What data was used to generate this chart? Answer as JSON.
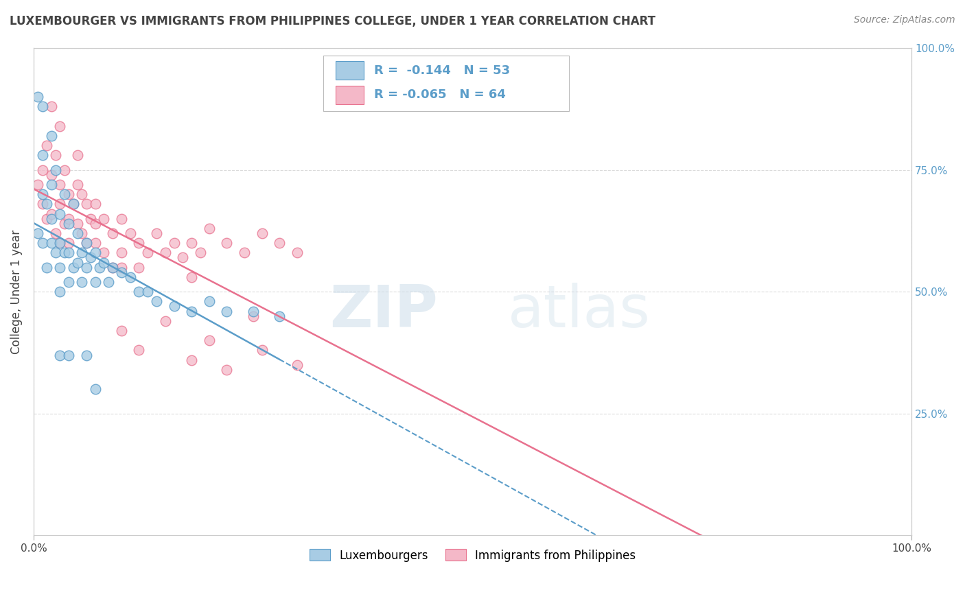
{
  "title": "LUXEMBOURGER VS IMMIGRANTS FROM PHILIPPINES COLLEGE, UNDER 1 YEAR CORRELATION CHART",
  "source_text": "Source: ZipAtlas.com",
  "ylabel": "College, Under 1 year",
  "xlim": [
    0.0,
    1.0
  ],
  "ylim": [
    0.0,
    1.0
  ],
  "blue_color": "#a8cce4",
  "blue_edge_color": "#5b9dc9",
  "pink_color": "#f4b8c8",
  "pink_edge_color": "#e8718e",
  "blue_line_color": "#5b9dc9",
  "pink_line_color": "#e8718e",
  "lux_x": [
    0.005,
    0.01,
    0.01,
    0.01,
    0.015,
    0.015,
    0.02,
    0.02,
    0.02,
    0.025,
    0.025,
    0.03,
    0.03,
    0.03,
    0.03,
    0.035,
    0.035,
    0.04,
    0.04,
    0.04,
    0.045,
    0.045,
    0.05,
    0.05,
    0.055,
    0.055,
    0.06,
    0.06,
    0.065,
    0.07,
    0.07,
    0.075,
    0.08,
    0.085,
    0.09,
    0.1,
    0.11,
    0.12,
    0.13,
    0.14,
    0.16,
    0.18,
    0.2,
    0.22,
    0.25,
    0.28,
    0.005,
    0.01,
    0.02,
    0.03,
    0.04,
    0.06,
    0.07
  ],
  "lux_y": [
    0.62,
    0.78,
    0.7,
    0.6,
    0.68,
    0.55,
    0.72,
    0.65,
    0.6,
    0.75,
    0.58,
    0.66,
    0.6,
    0.55,
    0.5,
    0.7,
    0.58,
    0.64,
    0.58,
    0.52,
    0.68,
    0.55,
    0.62,
    0.56,
    0.58,
    0.52,
    0.6,
    0.55,
    0.57,
    0.58,
    0.52,
    0.55,
    0.56,
    0.52,
    0.55,
    0.54,
    0.53,
    0.5,
    0.5,
    0.48,
    0.47,
    0.46,
    0.48,
    0.46,
    0.46,
    0.45,
    0.9,
    0.88,
    0.82,
    0.37,
    0.37,
    0.37,
    0.3
  ],
  "phil_x": [
    0.005,
    0.01,
    0.01,
    0.015,
    0.015,
    0.02,
    0.02,
    0.025,
    0.025,
    0.03,
    0.03,
    0.03,
    0.035,
    0.035,
    0.04,
    0.04,
    0.04,
    0.045,
    0.05,
    0.05,
    0.055,
    0.055,
    0.06,
    0.06,
    0.065,
    0.07,
    0.07,
    0.08,
    0.08,
    0.09,
    0.09,
    0.1,
    0.1,
    0.11,
    0.12,
    0.13,
    0.14,
    0.15,
    0.16,
    0.17,
    0.18,
    0.19,
    0.2,
    0.22,
    0.24,
    0.26,
    0.28,
    0.3,
    0.02,
    0.03,
    0.05,
    0.07,
    0.1,
    0.15,
    0.2,
    0.1,
    0.12,
    0.18,
    0.22,
    0.26,
    0.3,
    0.12,
    0.18,
    0.25
  ],
  "phil_y": [
    0.72,
    0.75,
    0.68,
    0.8,
    0.65,
    0.74,
    0.66,
    0.78,
    0.62,
    0.72,
    0.68,
    0.6,
    0.75,
    0.64,
    0.7,
    0.65,
    0.6,
    0.68,
    0.72,
    0.64,
    0.7,
    0.62,
    0.68,
    0.6,
    0.65,
    0.68,
    0.6,
    0.65,
    0.58,
    0.62,
    0.55,
    0.65,
    0.58,
    0.62,
    0.6,
    0.58,
    0.62,
    0.58,
    0.6,
    0.57,
    0.6,
    0.58,
    0.63,
    0.6,
    0.58,
    0.62,
    0.6,
    0.58,
    0.88,
    0.84,
    0.78,
    0.64,
    0.55,
    0.44,
    0.4,
    0.42,
    0.38,
    0.36,
    0.34,
    0.38,
    0.35,
    0.55,
    0.53,
    0.45
  ],
  "watermark_zip": "ZIP",
  "watermark_atlas": "atlas",
  "background_color": "#ffffff",
  "grid_color": "#cccccc",
  "right_tick_color": "#5b9dc9"
}
